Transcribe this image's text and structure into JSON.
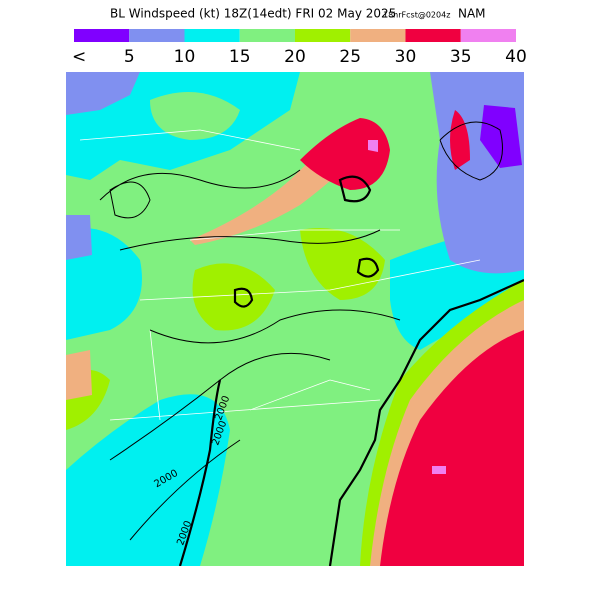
{
  "header": {
    "title": "BL Windspeed (kt) 18Z(14edt) FRI 02 May 2025",
    "forecast": "18hrFcst@0204z",
    "model": "NAM"
  },
  "colorbar": {
    "colors": [
      "#8000ff",
      "#8090f0",
      "#00f0f0",
      "#80f080",
      "#a0f000",
      "#f0b080",
      "#f00040",
      "#f080f0"
    ],
    "labels": [
      "<",
      "5",
      "10",
      "15",
      "20",
      "25",
      "30",
      "35",
      "40"
    ]
  },
  "contour_labels": [
    "2000",
    "2000",
    "2000",
    "2000"
  ]
}
